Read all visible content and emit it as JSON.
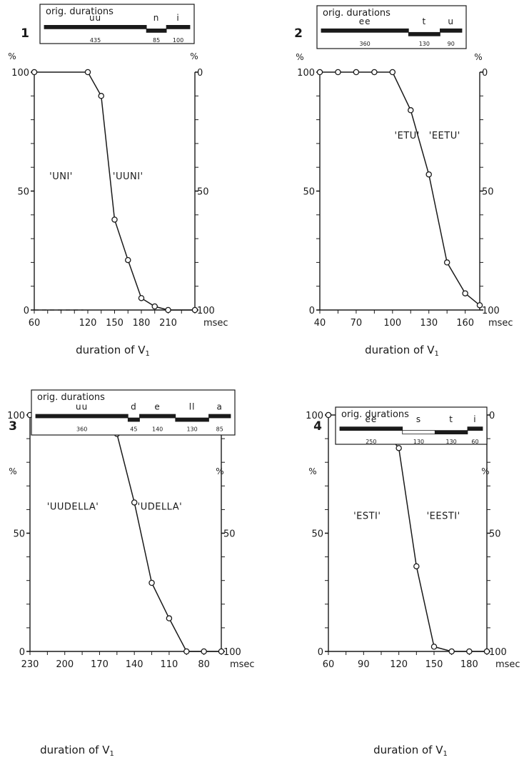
{
  "figure": {
    "unit_percent": "%",
    "x_unit": "msec"
  },
  "chart_data": [
    {
      "type": "line",
      "panel_number": "1",
      "xlabel": "duration of V1",
      "x_unit": "msec",
      "left_axis_ticks": [
        "100",
        "50",
        "0"
      ],
      "right_axis_ticks": [
        "0",
        "50",
        "100"
      ],
      "x_ticks": [
        "60",
        "120",
        "150",
        "180",
        "210"
      ],
      "x_tick_values": [
        60,
        120,
        150,
        180,
        210
      ],
      "xlim": [
        60,
        240
      ],
      "ylim": [
        0,
        100
      ],
      "y_unit": "%",
      "series": [
        {
          "x": [
            60,
            120,
            135,
            150,
            165,
            180,
            195,
            210,
            240
          ],
          "y": [
            100,
            100,
            90,
            38,
            21,
            5,
            1.5,
            0,
            0
          ]
        }
      ],
      "dashed_baseline": [
        60,
        115
      ],
      "annotations": [
        {
          "text": "'UNI'",
          "x": 90,
          "y": 55
        },
        {
          "text": "'UUNI'",
          "x": 165,
          "y": 55
        }
      ],
      "orig_durations": {
        "title": "orig. durations",
        "segments": [
          {
            "label": "uu",
            "duration": "435",
            "length": 435,
            "level": "high",
            "style": "solid"
          },
          {
            "label": "n",
            "duration": "85",
            "length": 85,
            "level": "low",
            "style": "solid"
          },
          {
            "label": "i",
            "duration": "100",
            "length": 100,
            "level": "high",
            "style": "solid"
          }
        ]
      }
    },
    {
      "type": "line",
      "panel_number": "2",
      "xlabel": "duration of V1",
      "x_unit": "msec",
      "left_axis_ticks": [
        "100",
        "50",
        "0"
      ],
      "right_axis_ticks": [
        "0",
        "50",
        "100"
      ],
      "x_ticks": [
        "40",
        "70",
        "100",
        "130",
        "160"
      ],
      "x_tick_values": [
        40,
        70,
        100,
        130,
        160
      ],
      "xlim": [
        40,
        172
      ],
      "ylim": [
        0,
        100
      ],
      "y_unit": "%",
      "series": [
        {
          "x": [
            40,
            55,
            70,
            85,
            100,
            115,
            130,
            145,
            160,
            172
          ],
          "y": [
            100,
            100,
            100,
            100,
            100,
            84,
            57,
            20,
            7,
            2
          ]
        }
      ],
      "annotations": [
        {
          "text": "'ETU'",
          "x": 112,
          "y": 72
        },
        {
          "text": "'EETU'",
          "x": 143,
          "y": 72
        }
      ],
      "orig_durations": {
        "title": "orig. durations",
        "segments": [
          {
            "label": "ee",
            "duration": "360",
            "length": 360,
            "level": "high",
            "style": "solid"
          },
          {
            "label": "t",
            "duration": "130",
            "length": 130,
            "level": "low",
            "style": "solid"
          },
          {
            "label": "u",
            "duration": "90",
            "length": 90,
            "level": "high",
            "style": "solid"
          }
        ]
      }
    },
    {
      "type": "line",
      "panel_number": "3",
      "xlabel": "duration of V1",
      "x_unit": "msec",
      "left_axis_ticks": [
        "100",
        "50",
        "0"
      ],
      "right_axis_ticks": [
        "0",
        "50",
        "100"
      ],
      "x_ticks": [
        "230",
        "200",
        "170",
        "140",
        "110",
        "80"
      ],
      "x_tick_values": [
        230,
        200,
        170,
        140,
        110,
        80
      ],
      "xlim": [
        230,
        65
      ],
      "ylim": [
        0,
        100
      ],
      "y_unit": "%",
      "series": [
        {
          "x": [
            230,
            215,
            200,
            185,
            170,
            155,
            140,
            125,
            110,
            95,
            80,
            65
          ],
          "y": [
            100,
            100,
            100,
            100,
            98,
            92,
            63,
            29,
            14,
            0,
            0,
            0
          ]
        }
      ],
      "annotations": [
        {
          "text": "'UUDELLA'",
          "x": 193,
          "y": 60
        },
        {
          "text": "'UDELLA'",
          "x": 118,
          "y": 60
        }
      ],
      "orig_durations": {
        "title": "orig. durations",
        "segments": [
          {
            "label": "uu",
            "duration": "360",
            "length": 360,
            "level": "high",
            "style": "solid"
          },
          {
            "label": "d",
            "duration": "45",
            "length": 45,
            "level": "low",
            "style": "solid"
          },
          {
            "label": "e",
            "duration": "140",
            "length": 140,
            "level": "high",
            "style": "solid"
          },
          {
            "label": "ll",
            "duration": "130",
            "length": 130,
            "level": "low",
            "style": "solid"
          },
          {
            "label": "a",
            "duration": "85",
            "length": 85,
            "level": "high",
            "style": "solid"
          }
        ]
      }
    },
    {
      "type": "line",
      "panel_number": "4",
      "xlabel": "duration of V1",
      "x_unit": "msec",
      "left_axis_ticks": [
        "100",
        "50",
        "0"
      ],
      "right_axis_ticks": [
        "0",
        "50",
        "100"
      ],
      "x_ticks": [
        "60",
        "90",
        "120",
        "150",
        "180"
      ],
      "x_tick_values": [
        60,
        90,
        120,
        150,
        180
      ],
      "xlim": [
        60,
        195
      ],
      "ylim": [
        0,
        100
      ],
      "y_unit": "%",
      "series": [
        {
          "x": [
            60,
            75,
            90,
            105,
            120,
            135,
            150,
            165,
            180,
            195
          ],
          "y": [
            100,
            100,
            100,
            95,
            86,
            36,
            2,
            0,
            0,
            0
          ]
        }
      ],
      "annotations": [
        {
          "text": "'ESTI'",
          "x": 93,
          "y": 56
        },
        {
          "text": "'EESTI'",
          "x": 158,
          "y": 56
        }
      ],
      "orig_durations": {
        "title": "orig. durations",
        "segments": [
          {
            "label": "ee",
            "duration": "250",
            "length": 250,
            "level": "high",
            "style": "solid"
          },
          {
            "label": "s",
            "duration": "130",
            "length": 130,
            "level": "low",
            "style": "hollow"
          },
          {
            "label": "t",
            "duration": "130",
            "length": 130,
            "level": "low",
            "style": "solid"
          },
          {
            "label": "i",
            "duration": "60",
            "length": 60,
            "level": "high",
            "style": "solid"
          }
        ]
      }
    }
  ]
}
